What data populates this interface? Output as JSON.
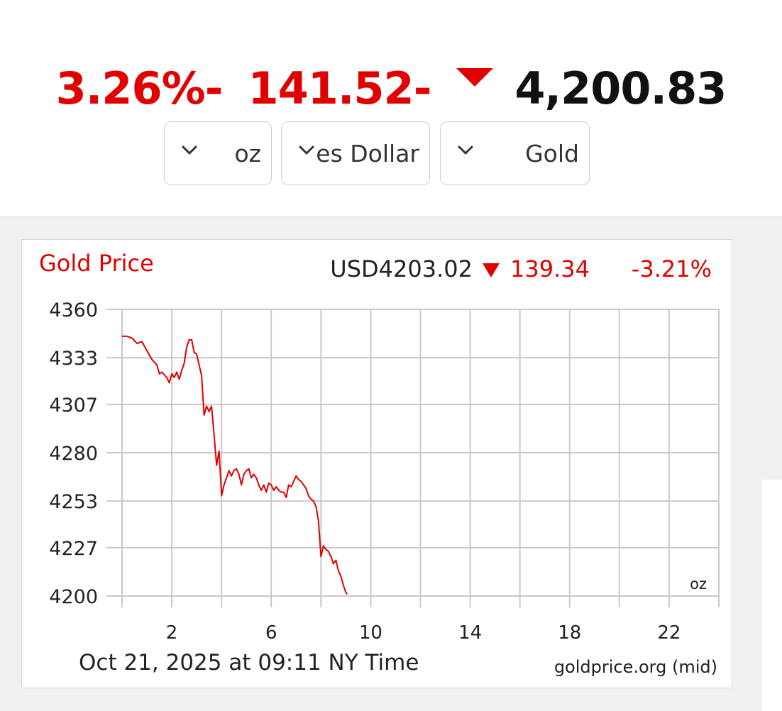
{
  "ticker": {
    "percent_change": "3.26%-",
    "change": "141.52-",
    "price": "4,200.83",
    "direction": "down",
    "down_color": "#e00000"
  },
  "selects": {
    "unit": {
      "value": "oz"
    },
    "currency": {
      "value": "es Dollar"
    },
    "metal": {
      "value": "Gold"
    }
  },
  "chart_data": {
    "type": "line",
    "title": "Gold Price",
    "quote": {
      "price": "USD4203.02",
      "change": "139.34",
      "percent": "-3.21%"
    },
    "ylim": [
      4200,
      4360
    ],
    "yticks": [
      4360,
      4333,
      4307,
      4280,
      4253,
      4227,
      4200
    ],
    "xlim": [
      0,
      24
    ],
    "xticks": [
      2,
      6,
      10,
      14,
      18,
      22
    ],
    "unit_label": "oz",
    "footer_left": "Oct 21, 2025 at 09:11 NY Time",
    "footer_right": "goldprice.org (mid)",
    "grid": true,
    "line_color": "#e00000",
    "series": [
      {
        "x": [
          0.0,
          0.2,
          0.4,
          0.6,
          0.8,
          1.0,
          1.2,
          1.4,
          1.5,
          1.6,
          1.8,
          1.9,
          2.0,
          2.1,
          2.2,
          2.3,
          2.4,
          2.5,
          2.6,
          2.7,
          2.8,
          2.9,
          3.0,
          3.1,
          3.2,
          3.3,
          3.4,
          3.5,
          3.6,
          3.7,
          3.8,
          3.9,
          4.0,
          4.1,
          4.2,
          4.3,
          4.4,
          4.5,
          4.6,
          4.7,
          4.8,
          4.9,
          5.0,
          5.1,
          5.2,
          5.3,
          5.4,
          5.5,
          5.6,
          5.7,
          5.8,
          5.9,
          6.0,
          6.1,
          6.2,
          6.3,
          6.4,
          6.5,
          6.6,
          6.7,
          6.8,
          6.9,
          7.0,
          7.1,
          7.2,
          7.3,
          7.4,
          7.5,
          7.6,
          7.7,
          7.8,
          7.9,
          8.0,
          8.1,
          8.2,
          8.3,
          8.4,
          8.5,
          8.6,
          8.7,
          8.8,
          8.9,
          9.0,
          9.05
        ],
        "y": [
          4345,
          4345,
          4344,
          4341,
          4342,
          4337,
          4332,
          4329,
          4324,
          4325,
          4322,
          4319,
          4324,
          4322,
          4325,
          4321,
          4326,
          4330,
          4339,
          4343,
          4343,
          4336,
          4335,
          4329,
          4323,
          4301,
          4306,
          4303,
          4306,
          4290,
          4273,
          4281,
          4256,
          4262,
          4266,
          4270,
          4267,
          4270,
          4271,
          4268,
          4262,
          4268,
          4270,
          4271,
          4266,
          4268,
          4266,
          4262,
          4259,
          4262,
          4258,
          4263,
          4262,
          4259,
          4261,
          4259,
          4258,
          4258,
          4255,
          4262,
          4261,
          4264,
          4267,
          4265,
          4264,
          4262,
          4260,
          4256,
          4254,
          4253,
          4250,
          4242,
          4222,
          4228,
          4226,
          4225,
          4222,
          4218,
          4220,
          4214,
          4211,
          4206,
          4202,
          4201
        ]
      }
    ]
  }
}
